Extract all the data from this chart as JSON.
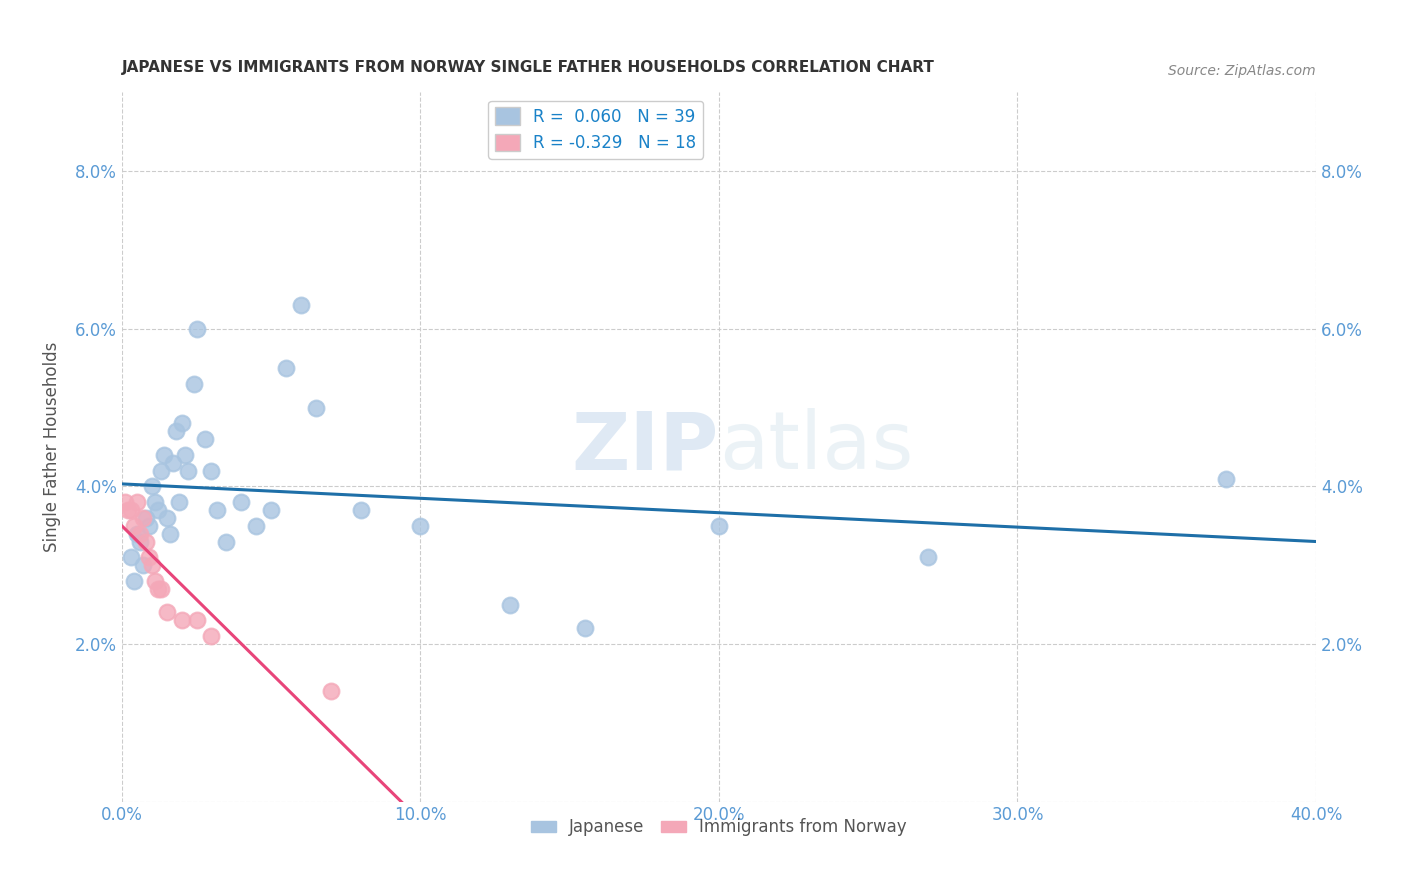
{
  "title": "JAPANESE VS IMMIGRANTS FROM NORWAY SINGLE FATHER HOUSEHOLDS CORRELATION CHART",
  "source": "Source: ZipAtlas.com",
  "ylabel": "Single Father Households",
  "watermark": "ZIPatlas",
  "xlim": [
    0.0,
    0.4
  ],
  "ylim": [
    0.0,
    0.09
  ],
  "xticks": [
    0.0,
    0.1,
    0.2,
    0.3,
    0.4
  ],
  "yticks": [
    0.0,
    0.02,
    0.04,
    0.06,
    0.08
  ],
  "xtick_labels": [
    "0.0%",
    "10.0%",
    "20.0%",
    "30.0%",
    "40.0%"
  ],
  "ytick_labels": [
    "",
    "2.0%",
    "4.0%",
    "6.0%",
    "8.0%"
  ],
  "japanese_R": 0.06,
  "japanese_N": 39,
  "norway_R": -0.329,
  "norway_N": 18,
  "japanese_color": "#a8c4e0",
  "norway_color": "#f4a8b8",
  "japanese_line_color": "#1e6fa8",
  "norway_line_color": "#e8457a",
  "title_color": "#333333",
  "axis_color": "#5b9bd5",
  "background_color": "#ffffff",
  "grid_color": "#cccccc",
  "legend_R_color": "#1a82c8",
  "japanese_x": [
    0.003,
    0.004,
    0.005,
    0.006,
    0.007,
    0.008,
    0.009,
    0.01,
    0.011,
    0.012,
    0.013,
    0.014,
    0.015,
    0.016,
    0.017,
    0.018,
    0.019,
    0.02,
    0.021,
    0.022,
    0.024,
    0.025,
    0.028,
    0.03,
    0.032,
    0.035,
    0.04,
    0.045,
    0.05,
    0.055,
    0.06,
    0.065,
    0.08,
    0.1,
    0.13,
    0.155,
    0.2,
    0.27,
    0.37
  ],
  "japanese_y": [
    0.031,
    0.028,
    0.034,
    0.033,
    0.03,
    0.036,
    0.035,
    0.04,
    0.038,
    0.037,
    0.042,
    0.044,
    0.036,
    0.034,
    0.043,
    0.047,
    0.038,
    0.048,
    0.044,
    0.042,
    0.053,
    0.06,
    0.046,
    0.042,
    0.037,
    0.033,
    0.038,
    0.035,
    0.037,
    0.055,
    0.063,
    0.05,
    0.037,
    0.035,
    0.025,
    0.022,
    0.035,
    0.031,
    0.041
  ],
  "norway_x": [
    0.001,
    0.002,
    0.003,
    0.004,
    0.005,
    0.006,
    0.007,
    0.008,
    0.009,
    0.01,
    0.011,
    0.012,
    0.013,
    0.015,
    0.02,
    0.025,
    0.03,
    0.07
  ],
  "norway_y": [
    0.038,
    0.037,
    0.037,
    0.035,
    0.038,
    0.034,
    0.036,
    0.033,
    0.031,
    0.03,
    0.028,
    0.027,
    0.027,
    0.024,
    0.023,
    0.023,
    0.021,
    0.014
  ],
  "norway_line_xlim": [
    0.0,
    0.1
  ],
  "norway_dashed_xlim": [
    0.1,
    0.2
  ]
}
